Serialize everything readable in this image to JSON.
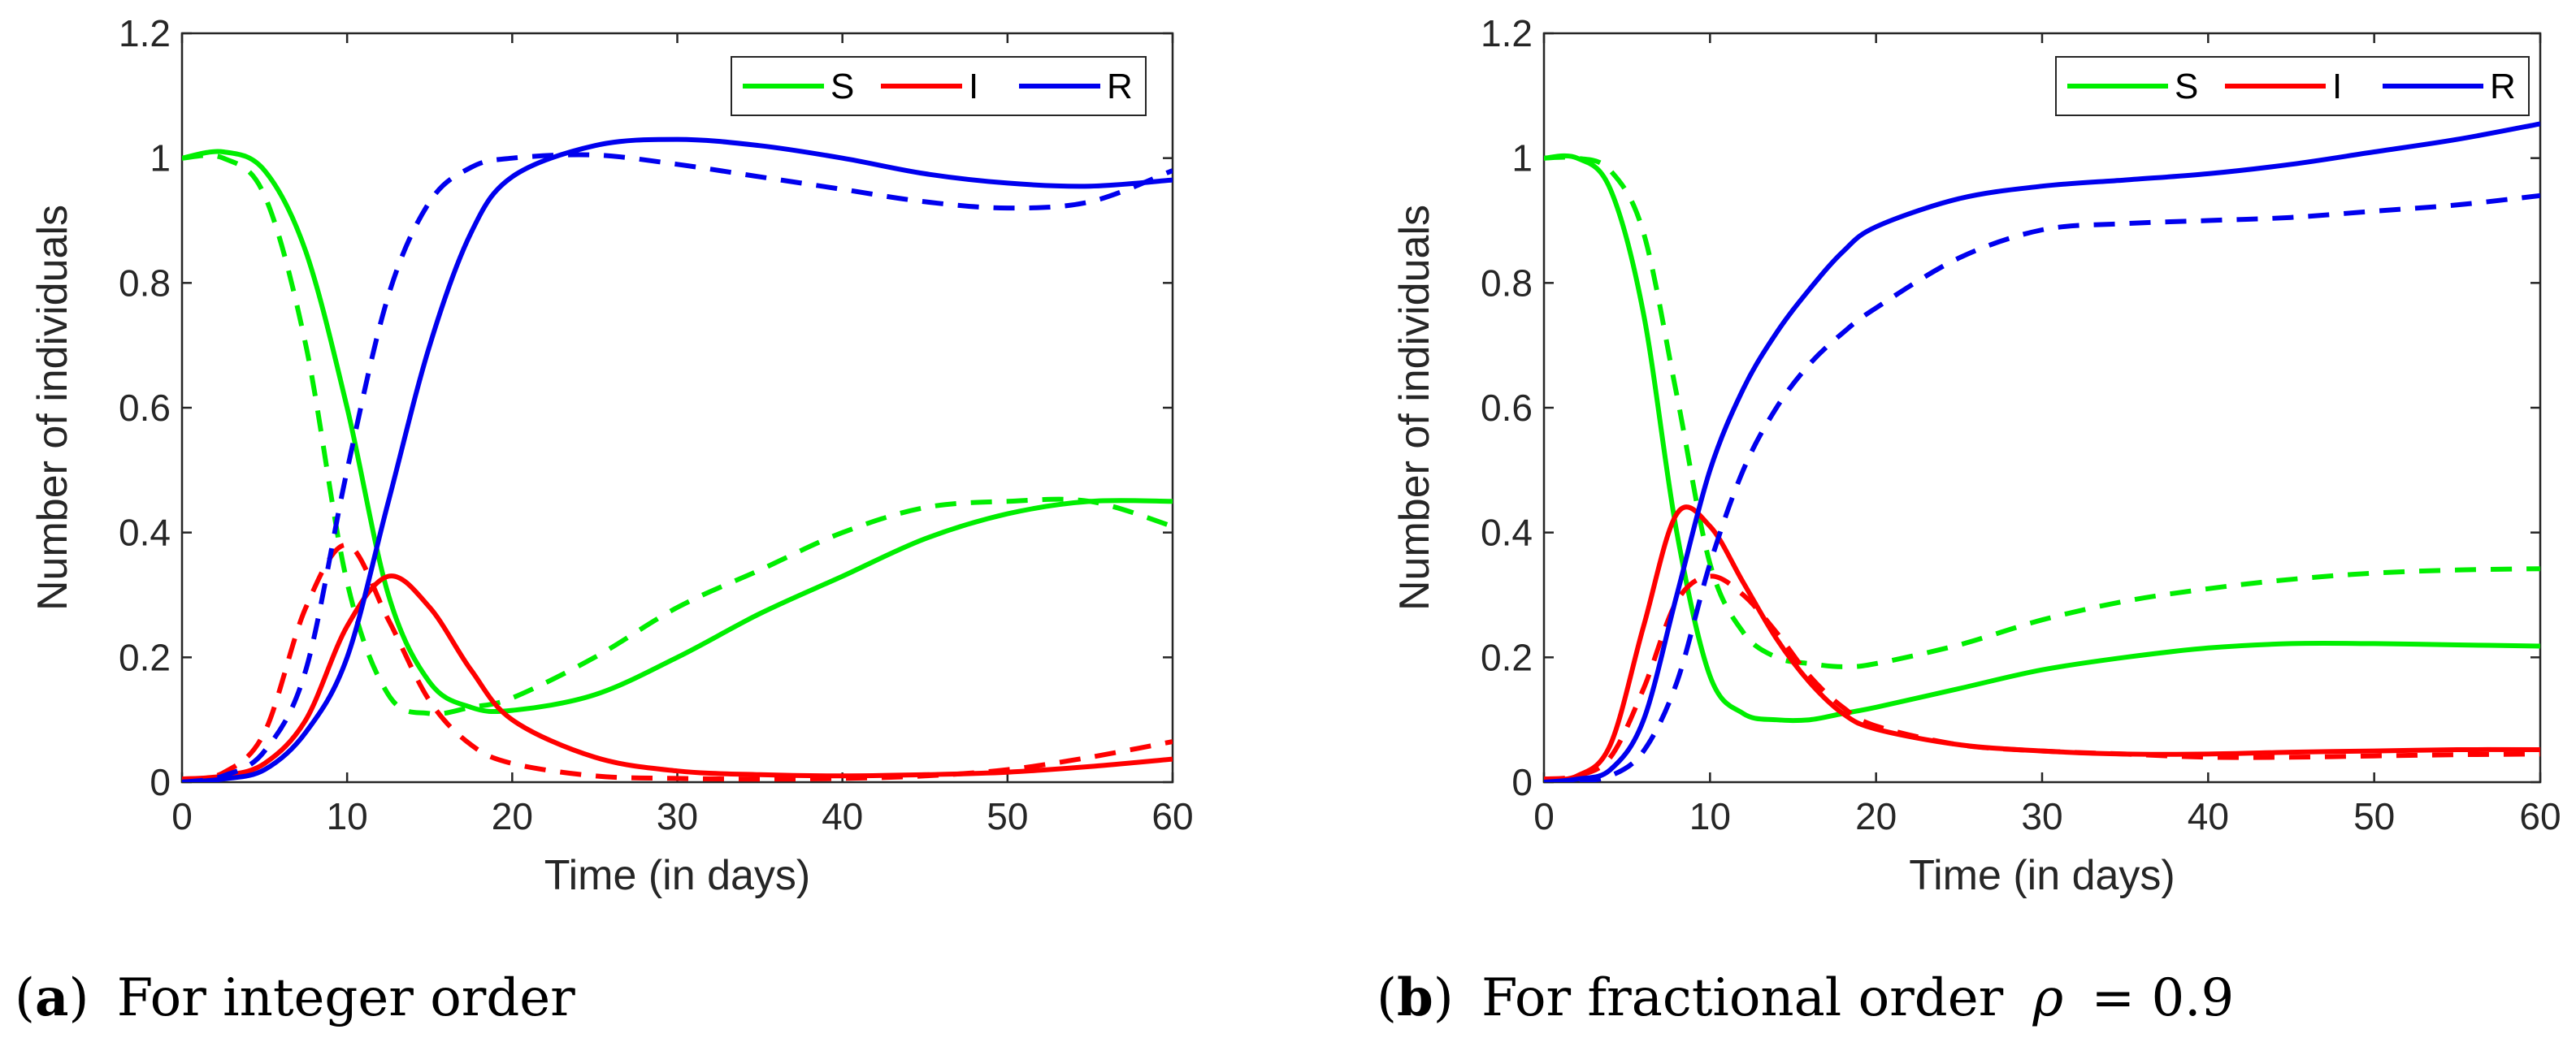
{
  "chart_data": [
    {
      "type": "line",
      "panel": "a",
      "caption_label": "a",
      "caption_text": "For integer order",
      "xlabel": "Time (in days)",
      "ylabel": "Number of individuals",
      "xlim": [
        0,
        60
      ],
      "ylim": [
        0,
        1.2
      ],
      "xticks": [
        0,
        10,
        20,
        30,
        40,
        50,
        60
      ],
      "yticks": [
        0,
        0.2,
        0.4,
        0.6,
        0.8,
        1,
        1.2
      ],
      "legend": [
        "S",
        "I",
        "R"
      ],
      "legend_position": "top-right",
      "x": [
        0,
        2.5,
        5,
        7.5,
        10,
        12.5,
        15,
        17.5,
        20,
        25,
        30,
        35,
        40,
        45,
        50,
        55,
        60
      ],
      "series": [
        {
          "name": "S",
          "style": "solid",
          "color": "#00ee00",
          "values": [
            1.0,
            1.01,
            0.98,
            0.85,
            0.6,
            0.3,
            0.16,
            0.12,
            0.115,
            0.14,
            0.2,
            0.27,
            0.33,
            0.39,
            0.43,
            0.45,
            0.45
          ]
        },
        {
          "name": "S",
          "style": "dashed",
          "color": "#00ee00",
          "values": [
            1.0,
            1.0,
            0.94,
            0.7,
            0.32,
            0.14,
            0.11,
            0.12,
            0.135,
            0.2,
            0.28,
            0.34,
            0.4,
            0.44,
            0.45,
            0.45,
            0.41
          ]
        },
        {
          "name": "I",
          "style": "solid",
          "color": "#ff0000",
          "values": [
            0.005,
            0.01,
            0.03,
            0.1,
            0.25,
            0.33,
            0.28,
            0.18,
            0.1,
            0.04,
            0.018,
            0.012,
            0.01,
            0.012,
            0.016,
            0.025,
            0.037
          ]
        },
        {
          "name": "I",
          "style": "dashed",
          "color": "#ff0000",
          "values": [
            0.005,
            0.015,
            0.08,
            0.28,
            0.38,
            0.26,
            0.13,
            0.06,
            0.03,
            0.01,
            0.006,
            0.005,
            0.006,
            0.01,
            0.02,
            0.04,
            0.065
          ]
        },
        {
          "name": "R",
          "style": "solid",
          "color": "#0000ee",
          "values": [
            0.0,
            0.005,
            0.02,
            0.08,
            0.2,
            0.45,
            0.7,
            0.88,
            0.97,
            1.02,
            1.03,
            1.02,
            1.0,
            0.975,
            0.96,
            0.955,
            0.965
          ]
        },
        {
          "name": "R",
          "style": "dashed",
          "color": "#0000ee",
          "values": [
            0.0,
            0.01,
            0.05,
            0.18,
            0.5,
            0.78,
            0.93,
            0.985,
            1.0,
            1.005,
            0.99,
            0.97,
            0.95,
            0.93,
            0.92,
            0.93,
            0.98
          ]
        }
      ]
    },
    {
      "type": "line",
      "panel": "b",
      "caption_label": "b",
      "caption_text": "For fractional order",
      "caption_math_symbol": "ρ",
      "caption_math_value": "= 0.9",
      "xlabel": "Time (in days)",
      "ylabel": "Number of individuals",
      "xlim": [
        0,
        60
      ],
      "ylim": [
        0,
        1.2
      ],
      "xticks": [
        0,
        10,
        20,
        30,
        40,
        50,
        60
      ],
      "yticks": [
        0,
        0.2,
        0.4,
        0.6,
        0.8,
        1,
        1.2
      ],
      "legend": [
        "S",
        "I",
        "R"
      ],
      "legend_position": "top-right",
      "x": [
        0,
        2,
        4,
        6,
        8,
        10,
        12,
        14,
        16,
        18,
        20,
        25,
        30,
        35,
        40,
        45,
        50,
        55,
        60
      ],
      "series": [
        {
          "name": "S",
          "style": "solid",
          "color": "#00ee00",
          "values": [
            1.0,
            1.0,
            0.95,
            0.75,
            0.4,
            0.17,
            0.11,
            0.1,
            0.1,
            0.11,
            0.12,
            0.15,
            0.18,
            0.2,
            0.215,
            0.222,
            0.222,
            0.22,
            0.218
          ]
        },
        {
          "name": "S",
          "style": "dashed",
          "color": "#00ee00",
          "values": [
            1.0,
            1.0,
            0.98,
            0.88,
            0.62,
            0.35,
            0.24,
            0.2,
            0.19,
            0.185,
            0.19,
            0.22,
            0.26,
            0.29,
            0.31,
            0.325,
            0.335,
            0.34,
            0.342
          ]
        },
        {
          "name": "I",
          "style": "solid",
          "color": "#ff0000",
          "values": [
            0.005,
            0.01,
            0.06,
            0.25,
            0.43,
            0.41,
            0.32,
            0.23,
            0.16,
            0.11,
            0.085,
            0.06,
            0.05,
            0.045,
            0.045,
            0.048,
            0.05,
            0.052,
            0.052
          ]
        },
        {
          "name": "I",
          "style": "dashed",
          "color": "#ff0000",
          "values": [
            0.005,
            0.01,
            0.04,
            0.15,
            0.29,
            0.33,
            0.3,
            0.24,
            0.17,
            0.12,
            0.09,
            0.06,
            0.05,
            0.045,
            0.04,
            0.04,
            0.042,
            0.044,
            0.045
          ]
        },
        {
          "name": "R",
          "style": "solid",
          "color": "#0000ee",
          "values": [
            0.0,
            0.005,
            0.02,
            0.1,
            0.3,
            0.5,
            0.63,
            0.72,
            0.79,
            0.85,
            0.89,
            0.935,
            0.955,
            0.965,
            0.975,
            0.99,
            1.01,
            1.03,
            1.055
          ]
        },
        {
          "name": "R",
          "style": "dashed",
          "color": "#0000ee",
          "values": [
            0.0,
            0.002,
            0.01,
            0.05,
            0.16,
            0.35,
            0.5,
            0.6,
            0.67,
            0.72,
            0.76,
            0.84,
            0.885,
            0.895,
            0.9,
            0.905,
            0.915,
            0.925,
            0.94
          ]
        }
      ]
    }
  ]
}
